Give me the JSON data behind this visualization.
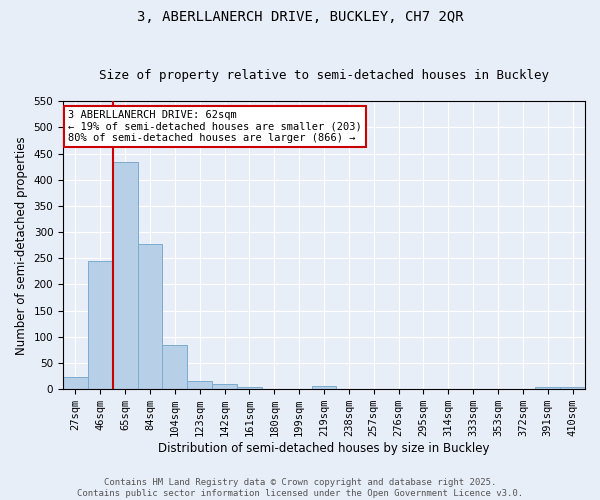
{
  "title": "3, ABERLLANERCH DRIVE, BUCKLEY, CH7 2QR",
  "subtitle": "Size of property relative to semi-detached houses in Buckley",
  "xlabel": "Distribution of semi-detached houses by size in Buckley",
  "ylabel": "Number of semi-detached properties",
  "categories": [
    "27sqm",
    "46sqm",
    "65sqm",
    "84sqm",
    "104sqm",
    "123sqm",
    "142sqm",
    "161sqm",
    "180sqm",
    "199sqm",
    "219sqm",
    "238sqm",
    "257sqm",
    "276sqm",
    "295sqm",
    "314sqm",
    "333sqm",
    "353sqm",
    "372sqm",
    "391sqm",
    "410sqm"
  ],
  "values": [
    24,
    244,
    434,
    278,
    85,
    15,
    10,
    5,
    0,
    0,
    6,
    0,
    0,
    0,
    0,
    0,
    0,
    0,
    0,
    5,
    5
  ],
  "bar_color": "#b8cfe8",
  "bar_edge_color": "#7aabd0",
  "vline_color": "#cc0000",
  "vline_x_index": 2,
  "annotation_title": "3 ABERLLANERCH DRIVE: 62sqm",
  "annotation_line1": "← 19% of semi-detached houses are smaller (203)",
  "annotation_line2": "80% of semi-detached houses are larger (866) →",
  "annotation_box_facecolor": "#ffffff",
  "annotation_box_edgecolor": "#cc0000",
  "ylim": [
    0,
    550
  ],
  "yticks": [
    0,
    50,
    100,
    150,
    200,
    250,
    300,
    350,
    400,
    450,
    500,
    550
  ],
  "background_color": "#e8eef8",
  "grid_color": "#ffffff",
  "footer_line1": "Contains HM Land Registry data © Crown copyright and database right 2025.",
  "footer_line2": "Contains public sector information licensed under the Open Government Licence v3.0.",
  "title_fontsize": 10,
  "subtitle_fontsize": 9,
  "axis_label_fontsize": 8.5,
  "tick_fontsize": 7.5,
  "annotation_fontsize": 7.5,
  "footer_fontsize": 6.5
}
